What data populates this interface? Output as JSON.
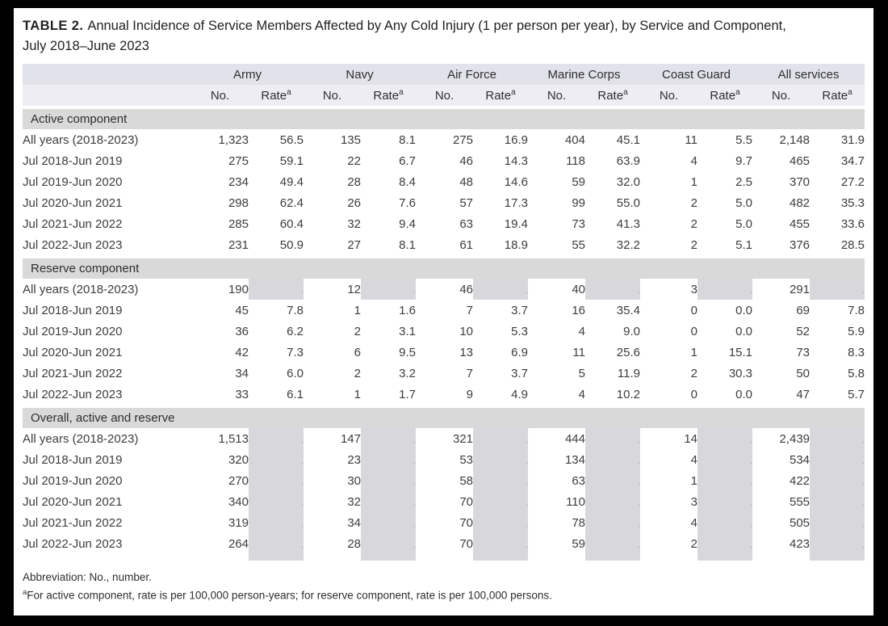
{
  "title": {
    "label": "TABLE 2.",
    "line1": "Annual Incidence of Service Members Affected by Any Cold Injury (1 per person per year), by Service and Component,",
    "line2": "July 2018–June 2023"
  },
  "columns": {
    "no_label": "No.",
    "rate_label": "Rate",
    "rate_footnote_marker": "a"
  },
  "services": [
    "Army",
    "Navy",
    "Air Force",
    "Marine Corps",
    "Coast Guard",
    "All services"
  ],
  "masked_symbol": ".",
  "sections": [
    {
      "label": "Active component",
      "shaded_tail": false,
      "rows": [
        {
          "label": "All years (2018-2023)",
          "cells": [
            "1,323",
            "56.5",
            "135",
            "8.1",
            "275",
            "16.9",
            "404",
            "45.1",
            "11",
            "5.5",
            "2,148",
            "31.9"
          ]
        },
        {
          "label": "Jul 2018-Jun 2019",
          "cells": [
            "275",
            "59.1",
            "22",
            "6.7",
            "46",
            "14.3",
            "118",
            "63.9",
            "4",
            "9.7",
            "465",
            "34.7"
          ]
        },
        {
          "label": "Jul 2019-Jun 2020",
          "cells": [
            "234",
            "49.4",
            "28",
            "8.4",
            "48",
            "14.6",
            "59",
            "32.0",
            "1",
            "2.5",
            "370",
            "27.2"
          ]
        },
        {
          "label": "Jul 2020-Jun 2021",
          "cells": [
            "298",
            "62.4",
            "26",
            "7.6",
            "57",
            "17.3",
            "99",
            "55.0",
            "2",
            "5.0",
            "482",
            "35.3"
          ]
        },
        {
          "label": "Jul 2021-Jun 2022",
          "cells": [
            "285",
            "60.4",
            "32",
            "9.4",
            "63",
            "19.4",
            "73",
            "41.3",
            "2",
            "5.0",
            "455",
            "33.6"
          ]
        },
        {
          "label": "Jul 2022-Jun 2023",
          "cells": [
            "231",
            "50.9",
            "27",
            "8.1",
            "61",
            "18.9",
            "55",
            "32.2",
            "2",
            "5.1",
            "376",
            "28.5"
          ]
        }
      ]
    },
    {
      "label": "Reserve component",
      "shaded_tail": false,
      "rows": [
        {
          "label": "All years (2018-2023)",
          "cells": [
            "190",
            null,
            "12",
            null,
            "46",
            null,
            "40",
            null,
            "3",
            null,
            "291",
            null
          ]
        },
        {
          "label": "Jul 2018-Jun 2019",
          "cells": [
            "45",
            "7.8",
            "1",
            "1.6",
            "7",
            "3.7",
            "16",
            "35.4",
            "0",
            "0.0",
            "69",
            "7.8"
          ]
        },
        {
          "label": "Jul 2019-Jun 2020",
          "cells": [
            "36",
            "6.2",
            "2",
            "3.1",
            "10",
            "5.3",
            "4",
            "9.0",
            "0",
            "0.0",
            "52",
            "5.9"
          ]
        },
        {
          "label": "Jul 2020-Jun 2021",
          "cells": [
            "42",
            "7.3",
            "6",
            "9.5",
            "13",
            "6.9",
            "11",
            "25.6",
            "1",
            "15.1",
            "73",
            "8.3"
          ]
        },
        {
          "label": "Jul 2021-Jun 2022",
          "cells": [
            "34",
            "6.0",
            "2",
            "3.2",
            "7",
            "3.7",
            "5",
            "11.9",
            "2",
            "30.3",
            "50",
            "5.8"
          ]
        },
        {
          "label": "Jul 2022-Jun 2023",
          "cells": [
            "33",
            "6.1",
            "1",
            "1.7",
            "9",
            "4.9",
            "4",
            "10.2",
            "0",
            "0.0",
            "47",
            "5.7"
          ]
        }
      ]
    },
    {
      "label": "Overall, active and reserve",
      "shaded_tail": true,
      "rows": [
        {
          "label": "All years (2018-2023)",
          "cells": [
            "1,513",
            null,
            "147",
            null,
            "321",
            null,
            "444",
            null,
            "14",
            null,
            "2,439",
            null
          ]
        },
        {
          "label": "Jul 2018-Jun 2019",
          "cells": [
            "320",
            null,
            "23",
            null,
            "53",
            null,
            "134",
            null,
            "4",
            null,
            "534",
            null
          ]
        },
        {
          "label": "Jul 2019-Jun 2020",
          "cells": [
            "270",
            null,
            "30",
            null,
            "58",
            null,
            "63",
            null,
            "1",
            null,
            "422",
            null
          ]
        },
        {
          "label": "Jul 2020-Jun 2021",
          "cells": [
            "340",
            null,
            "32",
            null,
            "70",
            null,
            "110",
            null,
            "3",
            null,
            "555",
            null
          ]
        },
        {
          "label": "Jul 2021-Jun 2022",
          "cells": [
            "319",
            null,
            "34",
            null,
            "70",
            null,
            "78",
            null,
            "4",
            null,
            "505",
            null
          ]
        },
        {
          "label": "Jul 2022-Jun 2023",
          "cells": [
            "264",
            null,
            "28",
            null,
            "70",
            null,
            "59",
            null,
            "2",
            null,
            "423",
            null
          ]
        }
      ]
    }
  ],
  "footnotes": {
    "abbreviation": "Abbreviation: No., number.",
    "marker": "a",
    "rate_note": "For active component, rate is per 100,000 person-years; for reserve component, rate is per 100,000 persons."
  },
  "colors": {
    "frame": "#000000",
    "panel_background": "#ffffff",
    "header_band_services": "#e2e2ea",
    "header_band_sublabels": "#ededf3",
    "section_band": "#d9d9d9",
    "masked_cell": "#d8d8dc",
    "text": "#231f20"
  }
}
